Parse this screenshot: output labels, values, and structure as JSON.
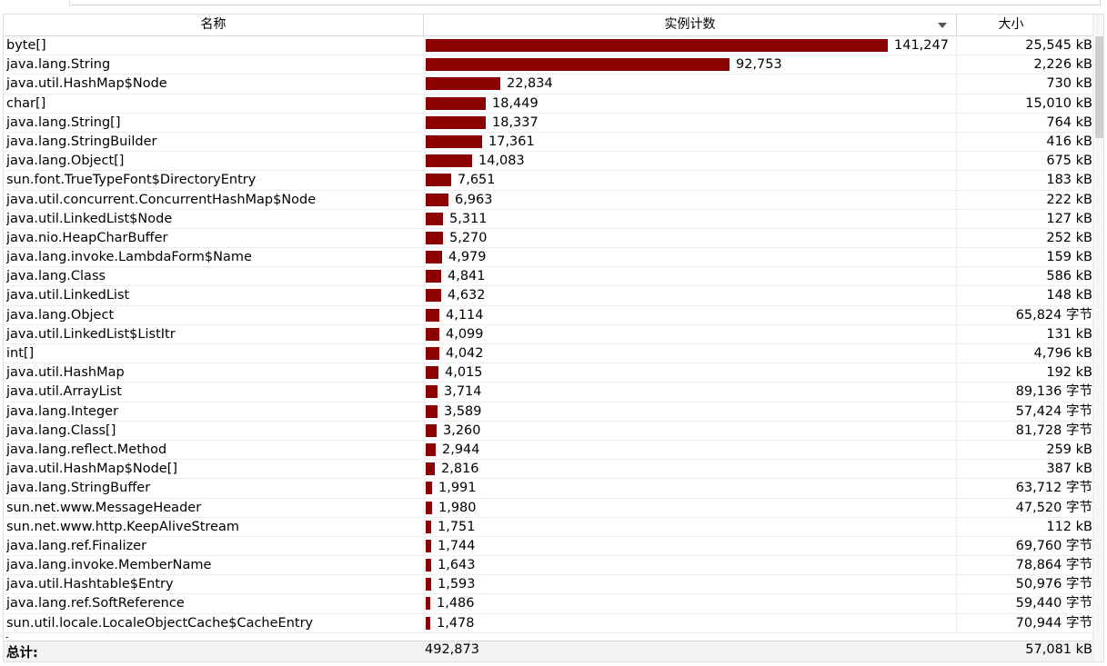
{
  "header": {
    "name": "名称",
    "count": "实例计数",
    "size": "大小"
  },
  "rows": [
    {
      "name": "byte[]",
      "count": "141,247",
      "bar": 1.0,
      "size": "25,545 kB"
    },
    {
      "name": "java.lang.String",
      "count": "92,753",
      "bar": 0.6567,
      "size": "2,226 kB"
    },
    {
      "name": "java.util.HashMap$Node",
      "count": "22,834",
      "bar": 0.1617,
      "size": "730 kB"
    },
    {
      "name": "char[]",
      "count": "18,449",
      "bar": 0.1306,
      "size": "15,010 kB"
    },
    {
      "name": "java.lang.String[]",
      "count": "18,337",
      "bar": 0.1298,
      "size": "764 kB"
    },
    {
      "name": "java.lang.StringBuilder",
      "count": "17,361",
      "bar": 0.1229,
      "size": "416 kB"
    },
    {
      "name": "java.lang.Object[]",
      "count": "14,083",
      "bar": 0.0997,
      "size": "675 kB"
    },
    {
      "name": "sun.font.TrueTypeFont$DirectoryEntry",
      "count": "7,651",
      "bar": 0.0542,
      "size": "183 kB"
    },
    {
      "name": "java.util.concurrent.ConcurrentHashMap$Node",
      "count": "6,963",
      "bar": 0.0493,
      "size": "222 kB"
    },
    {
      "name": "java.util.LinkedList$Node",
      "count": "5,311",
      "bar": 0.0376,
      "size": "127 kB"
    },
    {
      "name": "java.nio.HeapCharBuffer",
      "count": "5,270",
      "bar": 0.0373,
      "size": "252 kB"
    },
    {
      "name": "java.lang.invoke.LambdaForm$Name",
      "count": "4,979",
      "bar": 0.0353,
      "size": "159 kB"
    },
    {
      "name": "java.lang.Class",
      "count": "4,841",
      "bar": 0.0343,
      "size": "586 kB"
    },
    {
      "name": "java.util.LinkedList",
      "count": "4,632",
      "bar": 0.0328,
      "size": "148 kB"
    },
    {
      "name": "java.lang.Object",
      "count": "4,114",
      "bar": 0.0291,
      "size": "65,824 字节"
    },
    {
      "name": "java.util.LinkedList$ListItr",
      "count": "4,099",
      "bar": 0.029,
      "size": "131 kB"
    },
    {
      "name": "int[]",
      "count": "4,042",
      "bar": 0.0286,
      "size": "4,796 kB"
    },
    {
      "name": "java.util.HashMap",
      "count": "4,015",
      "bar": 0.0284,
      "size": "192 kB"
    },
    {
      "name": "java.util.ArrayList",
      "count": "3,714",
      "bar": 0.0263,
      "size": "89,136 字节"
    },
    {
      "name": "java.lang.Integer",
      "count": "3,589",
      "bar": 0.0254,
      "size": "57,424 字节"
    },
    {
      "name": "java.lang.Class[]",
      "count": "3,260",
      "bar": 0.0231,
      "size": "81,728 字节"
    },
    {
      "name": "java.lang.reflect.Method",
      "count": "2,944",
      "bar": 0.0208,
      "size": "259 kB"
    },
    {
      "name": "java.util.HashMap$Node[]",
      "count": "2,816",
      "bar": 0.0199,
      "size": "387 kB"
    },
    {
      "name": "java.lang.StringBuffer",
      "count": "1,991",
      "bar": 0.0141,
      "size": "63,712 字节"
    },
    {
      "name": "sun.net.www.MessageHeader",
      "count": "1,980",
      "bar": 0.014,
      "size": "47,520 字节"
    },
    {
      "name": "sun.net.www.http.KeepAliveStream",
      "count": "1,751",
      "bar": 0.0124,
      "size": "112 kB"
    },
    {
      "name": "java.lang.ref.Finalizer",
      "count": "1,744",
      "bar": 0.0123,
      "size": "69,760 字节"
    },
    {
      "name": "java.lang.invoke.MemberName",
      "count": "1,643",
      "bar": 0.0116,
      "size": "78,864 字节"
    },
    {
      "name": "java.util.Hashtable$Entry",
      "count": "1,593",
      "bar": 0.0113,
      "size": "50,976 字节"
    },
    {
      "name": "java.lang.ref.SoftReference",
      "count": "1,486",
      "bar": 0.0105,
      "size": "59,440 字节"
    },
    {
      "name": "sun.util.locale.LocaleObjectCache$CacheEntry",
      "count": "1,478",
      "bar": 0.0105,
      "size": "70,944 字节"
    }
  ],
  "footer": {
    "label": "总计:",
    "count": "492,873",
    "size": "57,081 kB"
  },
  "colors": {
    "bar": "#8b0000",
    "header_bg": "#ffffff",
    "footer_bg": "#f2f2f2",
    "grid_line": "#eeeeee"
  },
  "icons": {
    "sort": "sort-descending-icon"
  }
}
